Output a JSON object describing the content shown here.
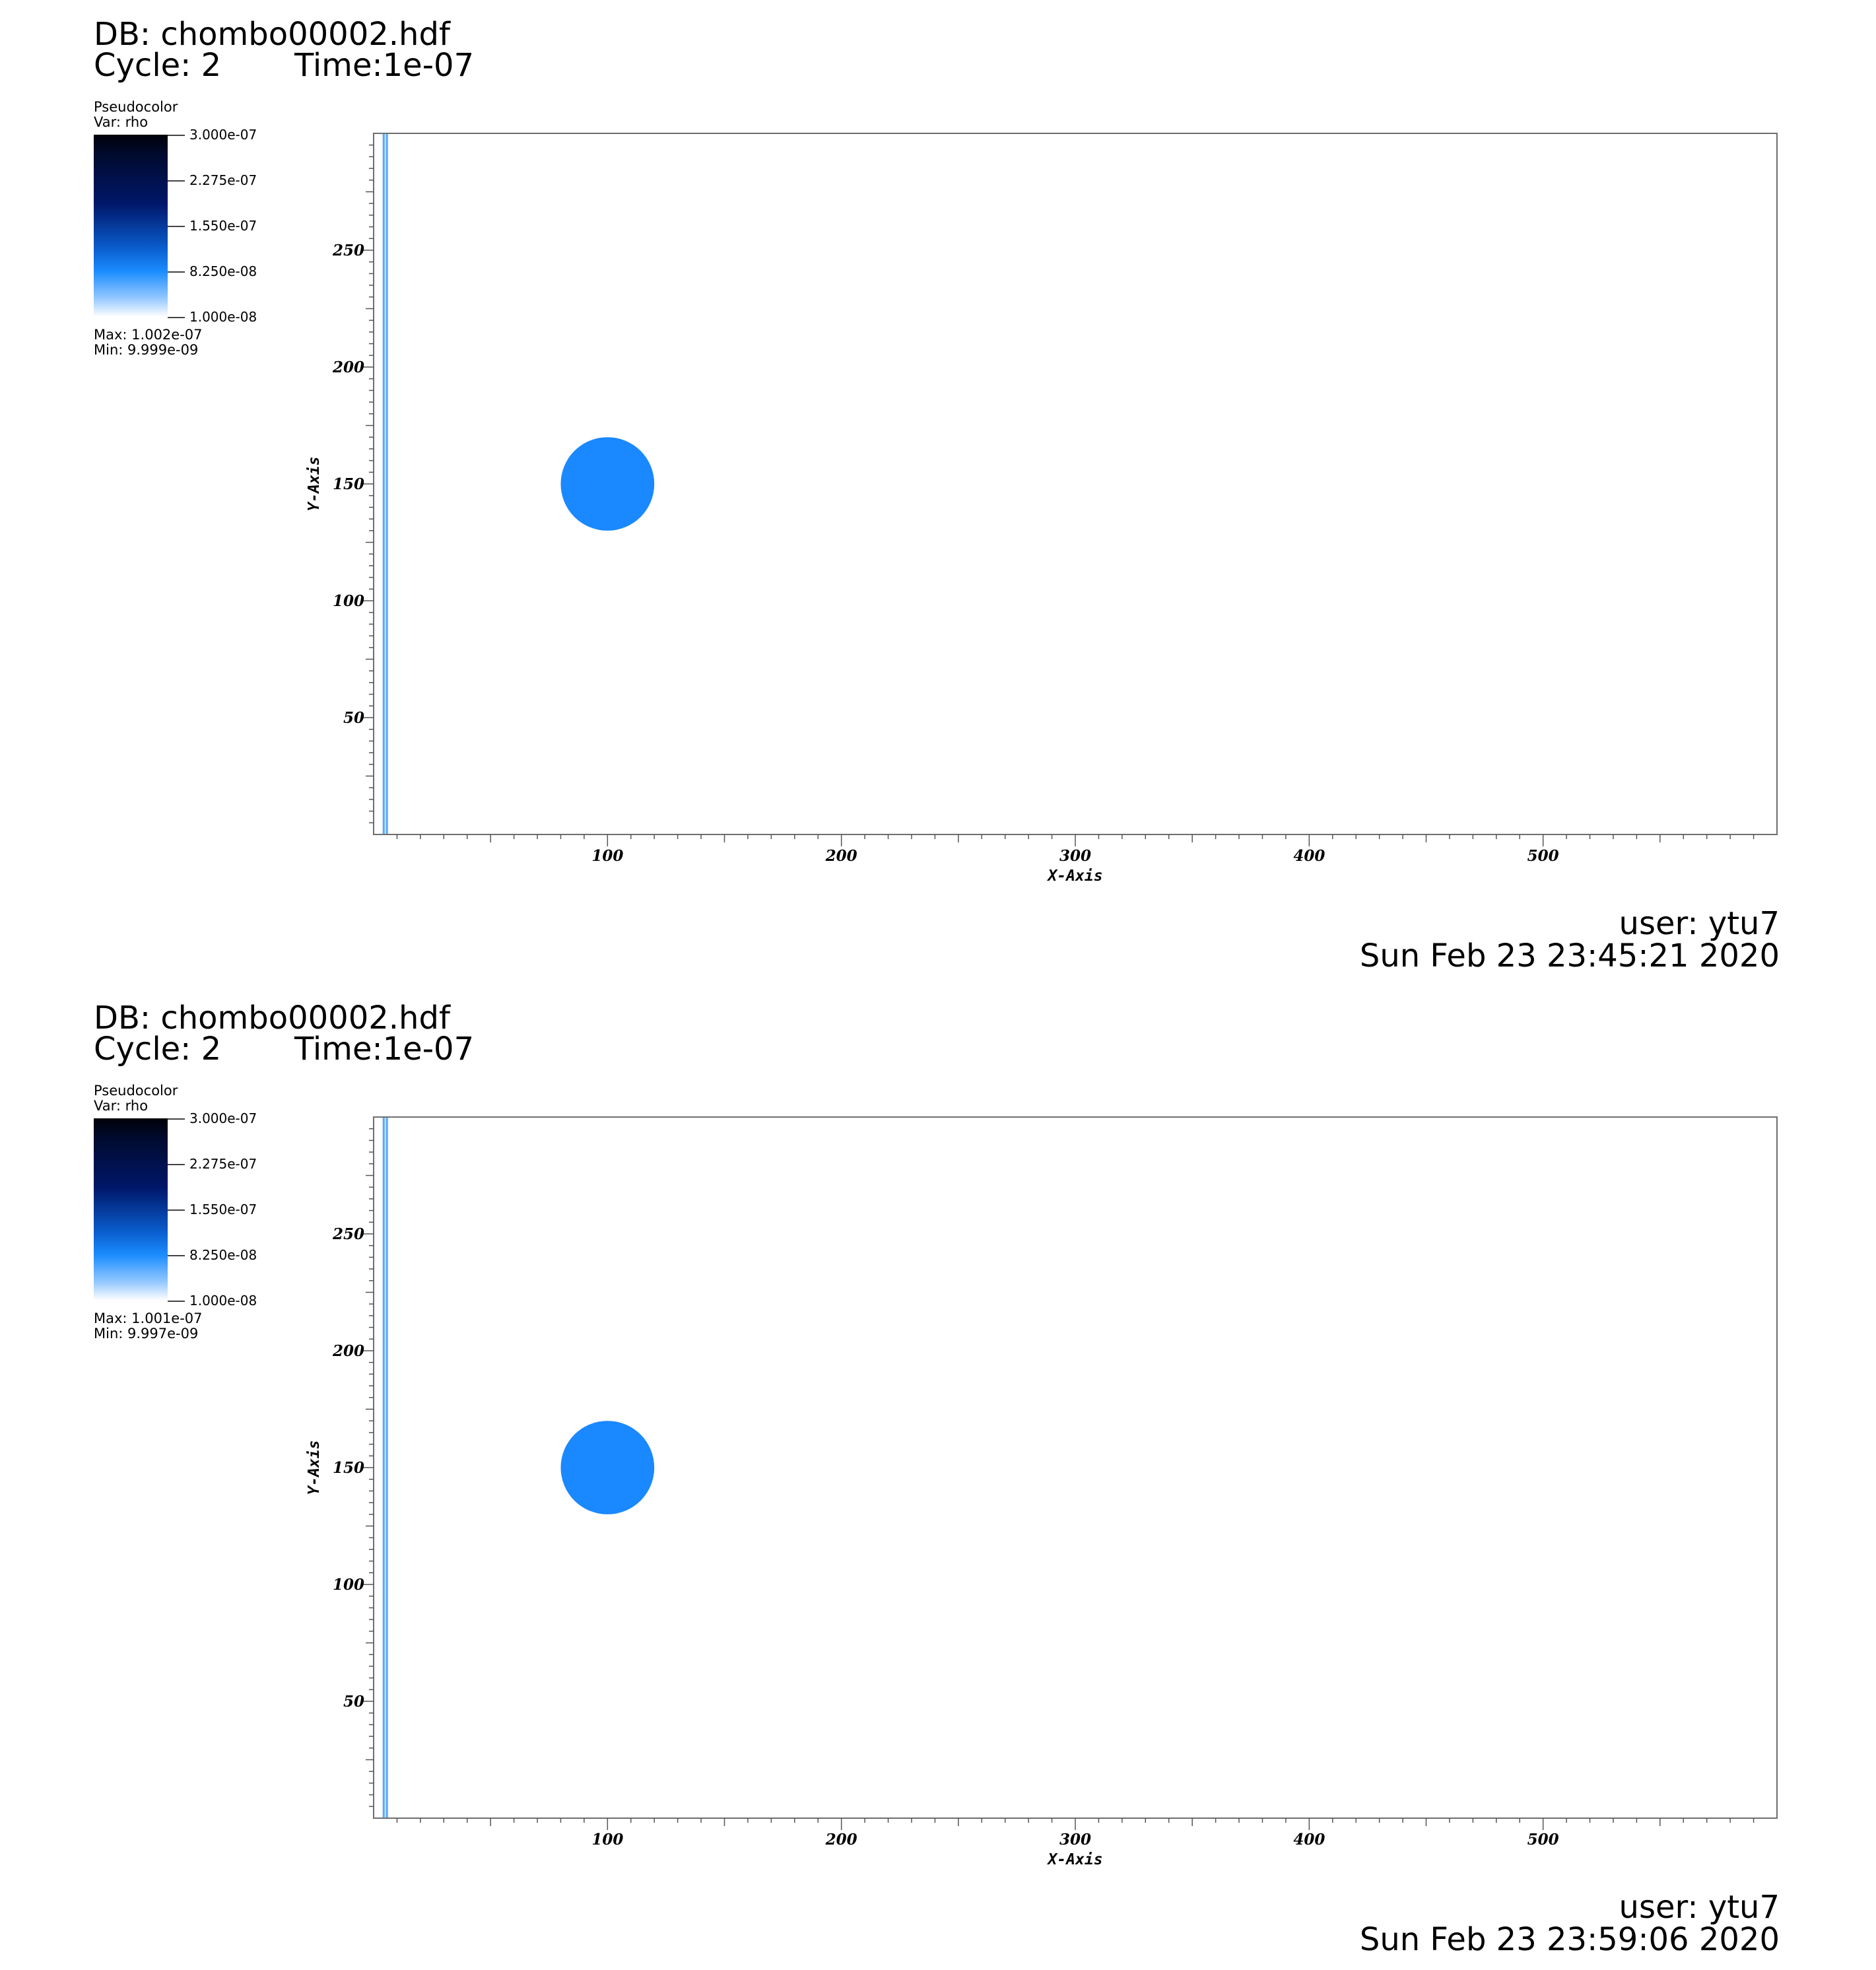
{
  "panels": [
    {
      "db_title": "DB: chombo00002.hdf",
      "cycle_label": "Cycle: 2",
      "time_label": "Time:1e-07",
      "legend": {
        "title": "Pseudocolor",
        "var": "Var: rho",
        "ticks": [
          "3.000e-07",
          "2.275e-07",
          "1.550e-07",
          "8.250e-08",
          "1.000e-08"
        ],
        "max": "Max:  1.002e-07",
        "min": "Min:  9.999e-09"
      },
      "user": "user: ytu7",
      "date": "Sun Feb 23 23:45:21 2020"
    },
    {
      "db_title": "DB: chombo00002.hdf",
      "cycle_label": "Cycle: 2",
      "time_label": "Time:1e-07",
      "legend": {
        "title": "Pseudocolor",
        "var": "Var: rho",
        "ticks": [
          "3.000e-07",
          "2.275e-07",
          "1.550e-07",
          "8.250e-08",
          "1.000e-08"
        ],
        "max": "Max:  1.001e-07",
        "min": "Min:  9.997e-09"
      },
      "user": "user: ytu7",
      "date": "Sun Feb 23 23:59:06 2020"
    }
  ],
  "chart_data": [
    {
      "type": "heatmap",
      "variable": "rho",
      "title": "DB: chombo00002.hdf",
      "xlabel": "X-Axis",
      "ylabel": "Y-Axis",
      "xlim": [
        0,
        600
      ],
      "ylim": [
        0,
        300
      ],
      "xticks": [
        100,
        200,
        300,
        400,
        500
      ],
      "yticks": [
        50,
        100,
        150,
        200,
        250
      ],
      "colorbar": {
        "min": 1e-08,
        "max": 3e-07,
        "colormap": "white-blue-black"
      },
      "data_range": {
        "max": 1.002e-07,
        "min": 9.999e-09
      },
      "features": [
        {
          "shape": "circle",
          "center_x": 100,
          "center_y": 150,
          "radius": 20,
          "value": 1e-07,
          "color": "#1a88ff"
        },
        {
          "shape": "vertical-line",
          "x": 5,
          "value": 8e-08,
          "color": "#5aa8ff"
        }
      ],
      "grid": false
    },
    {
      "type": "heatmap",
      "variable": "rho",
      "title": "DB: chombo00002.hdf",
      "xlabel": "X-Axis",
      "ylabel": "Y-Axis",
      "xlim": [
        0,
        600
      ],
      "ylim": [
        0,
        300
      ],
      "xticks": [
        100,
        200,
        300,
        400,
        500
      ],
      "yticks": [
        50,
        100,
        150,
        200,
        250
      ],
      "colorbar": {
        "min": 1e-08,
        "max": 3e-07,
        "colormap": "white-blue-black"
      },
      "data_range": {
        "max": 1.001e-07,
        "min": 9.997e-09
      },
      "features": [
        {
          "shape": "circle",
          "center_x": 100,
          "center_y": 150,
          "radius": 20,
          "value": 1e-07,
          "color": "#1a88ff"
        },
        {
          "shape": "vertical-line",
          "x": 5,
          "value": 8e-08,
          "color": "#5aa8ff"
        }
      ],
      "grid": false
    }
  ]
}
